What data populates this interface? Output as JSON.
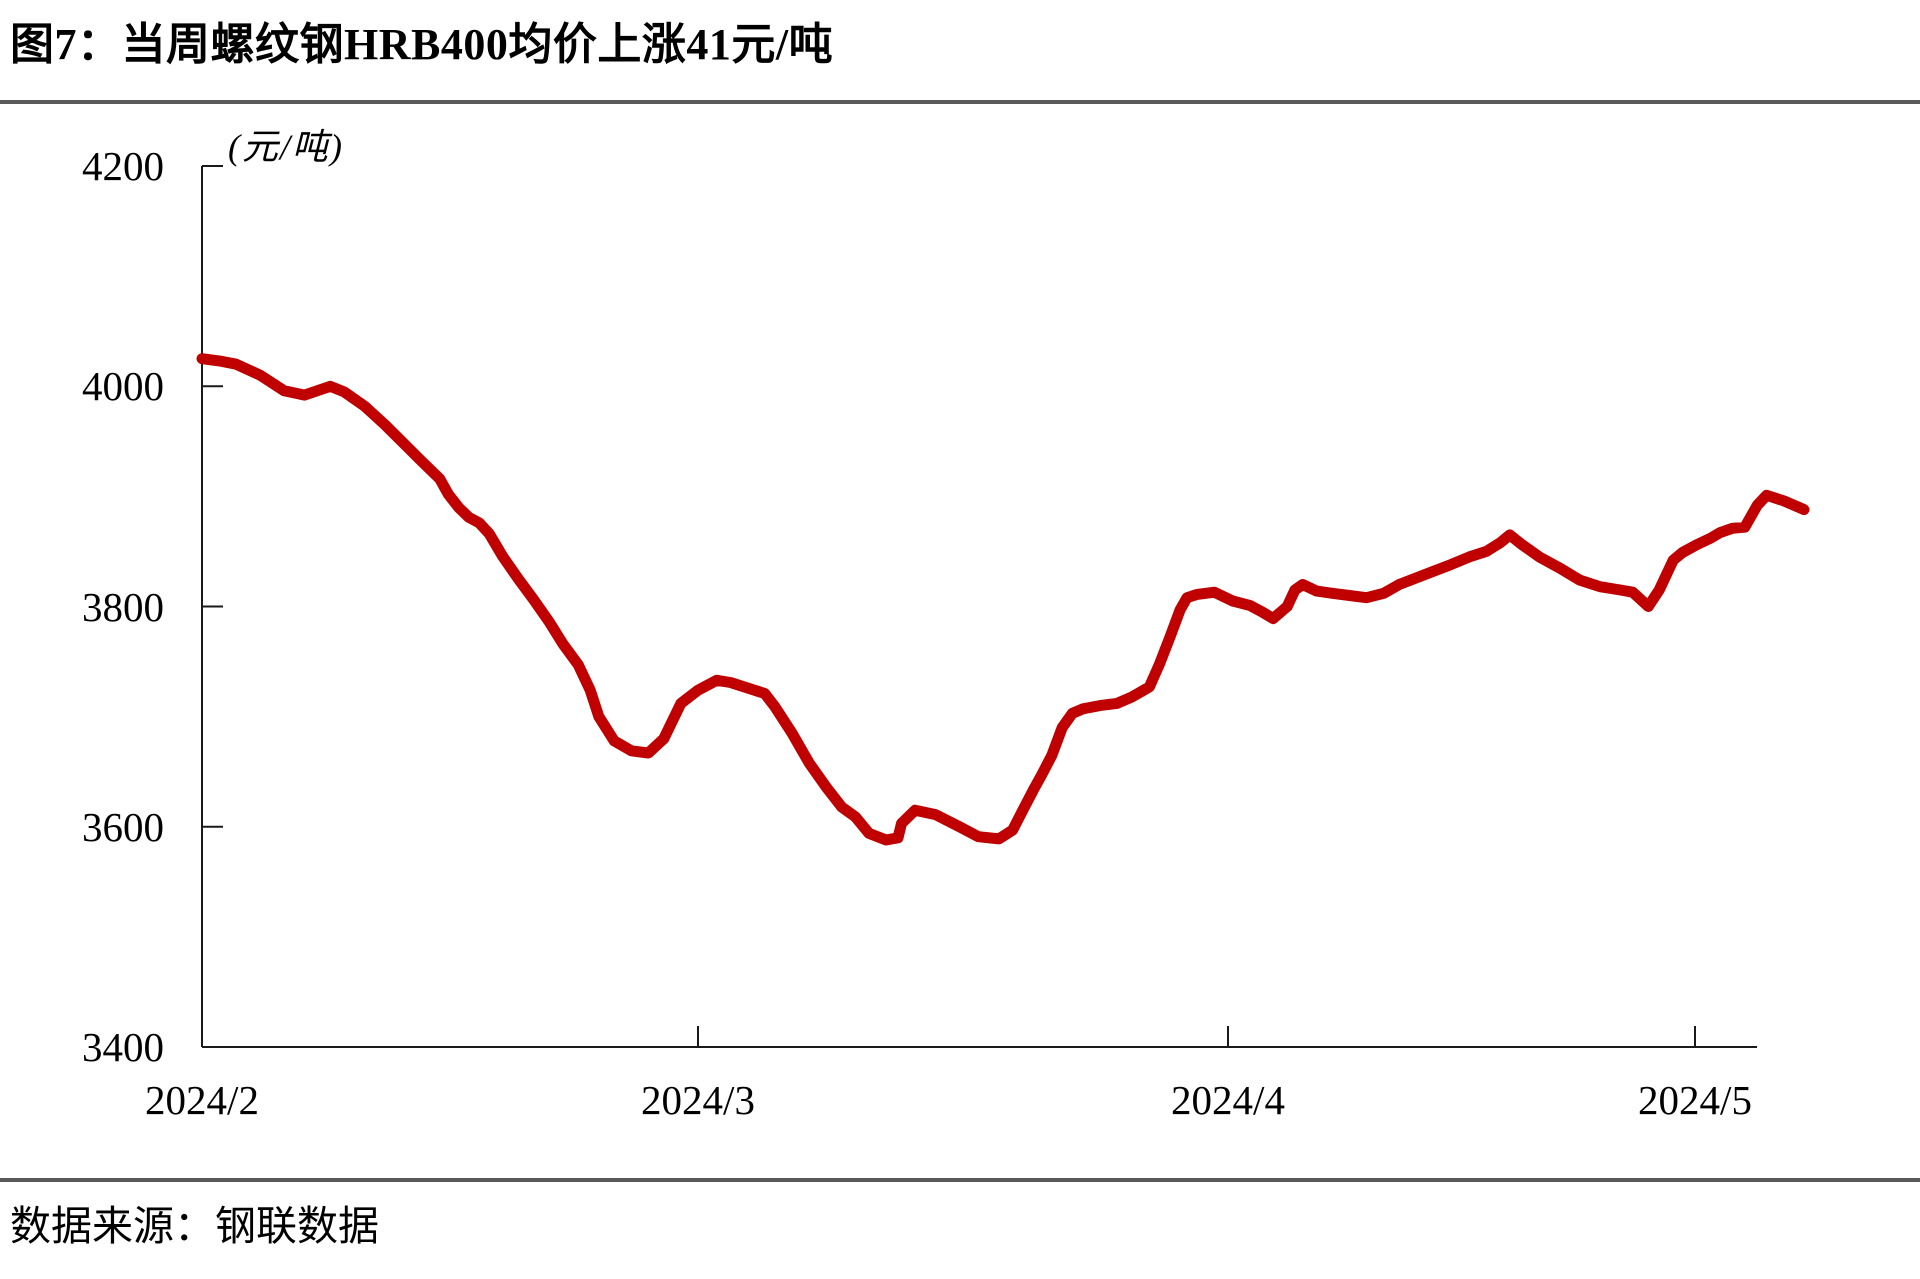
{
  "figure": {
    "title": "图7：当周螺纹钢HRB400均价上涨41元/吨",
    "source": "数据来源：钢联数据",
    "divider_color": "#595959",
    "background_color": "#ffffff",
    "axis_color": "#1a1a1a"
  },
  "chart_data": {
    "type": "line",
    "title": "当周螺纹钢HRB400均价上涨41元/吨",
    "unit_label": "(元/吨)",
    "xlabel": "",
    "ylabel": "元/吨",
    "ylim": [
      3400,
      4200
    ],
    "y_ticks": [
      "4200",
      "4000",
      "3800",
      "3600",
      "3400"
    ],
    "y_tick_values": [
      4200,
      4000,
      3800,
      3600,
      3400
    ],
    "x_ticks": [
      "2024/2",
      "2024/3",
      "2024/4",
      "2024/5"
    ],
    "month_tick_days": [
      0,
      29,
      60,
      90
    ],
    "grid": false,
    "legend_position": "none",
    "line_color": "#C00000",
    "line_width": 11,
    "x_axis_note": "x values are calendar days offset from 2024-02-01 (0=2/1, 29=3/1, 60=4/1, 90=5/1)",
    "series": [
      {
        "name": "螺纹钢HRB400均价",
        "points": [
          [
            0,
            4025
          ],
          [
            1,
            4023
          ],
          [
            2,
            4020
          ],
          [
            3.4,
            4010
          ],
          [
            4.8,
            3996
          ],
          [
            6,
            3992
          ],
          [
            7.5,
            4000
          ],
          [
            8.3,
            3995
          ],
          [
            9.5,
            3982
          ],
          [
            10.7,
            3965
          ],
          [
            11.8,
            3948
          ],
          [
            12.7,
            3934
          ],
          [
            13.9,
            3916
          ],
          [
            14.4,
            3902
          ],
          [
            15,
            3890
          ],
          [
            15.6,
            3881
          ],
          [
            16.2,
            3876
          ],
          [
            16.8,
            3866
          ],
          [
            17.6,
            3845
          ],
          [
            18.5,
            3825
          ],
          [
            19.4,
            3806
          ],
          [
            20.3,
            3786
          ],
          [
            21.1,
            3766
          ],
          [
            22,
            3747
          ],
          [
            22.7,
            3724
          ],
          [
            23.2,
            3700
          ],
          [
            24.1,
            3678
          ],
          [
            25.1,
            3669
          ],
          [
            26.1,
            3667
          ],
          [
            27,
            3680
          ],
          [
            28,
            3712
          ],
          [
            29,
            3724
          ],
          [
            30.1,
            3733
          ],
          [
            30.9,
            3731
          ],
          [
            31.9,
            3726
          ],
          [
            32.9,
            3721
          ],
          [
            33.5,
            3709
          ],
          [
            34.5,
            3685
          ],
          [
            35.5,
            3658
          ],
          [
            36.5,
            3636
          ],
          [
            37.4,
            3618
          ],
          [
            38.2,
            3609
          ],
          [
            39,
            3594
          ],
          [
            40,
            3588
          ],
          [
            40.7,
            3590
          ],
          [
            40.9,
            3603
          ],
          [
            41.7,
            3615
          ],
          [
            42.9,
            3611
          ],
          [
            44.3,
            3600
          ],
          [
            45.4,
            3591
          ],
          [
            46.6,
            3589
          ],
          [
            47.4,
            3597
          ],
          [
            48,
            3615
          ],
          [
            48.6,
            3633
          ],
          [
            49.1,
            3647
          ],
          [
            49.7,
            3665
          ],
          [
            50.3,
            3690
          ],
          [
            50.9,
            3703
          ],
          [
            51.5,
            3707
          ],
          [
            52.5,
            3710
          ],
          [
            53.5,
            3712
          ],
          [
            54.4,
            3718
          ],
          [
            55.4,
            3727
          ],
          [
            56,
            3748
          ],
          [
            56.6,
            3772
          ],
          [
            57.2,
            3797
          ],
          [
            57.6,
            3808
          ],
          [
            58.2,
            3811
          ],
          [
            59.2,
            3813
          ],
          [
            60.3,
            3805
          ],
          [
            61.4,
            3801
          ],
          [
            62.2,
            3795
          ],
          [
            62.9,
            3789
          ],
          [
            63.8,
            3800
          ],
          [
            64.3,
            3815
          ],
          [
            64.8,
            3820
          ],
          [
            65.7,
            3814
          ],
          [
            66.7,
            3812
          ],
          [
            67.8,
            3810
          ],
          [
            68.9,
            3808
          ],
          [
            70,
            3812
          ],
          [
            71,
            3820
          ],
          [
            72.1,
            3826
          ],
          [
            73.2,
            3832
          ],
          [
            74.3,
            3838
          ],
          [
            75.5,
            3845
          ],
          [
            76.6,
            3850
          ],
          [
            77.5,
            3858
          ],
          [
            78.1,
            3865
          ],
          [
            78.9,
            3856
          ],
          [
            80,
            3845
          ],
          [
            81.3,
            3835
          ],
          [
            82.6,
            3824
          ],
          [
            83.9,
            3818
          ],
          [
            85.2,
            3815
          ],
          [
            86,
            3813
          ],
          [
            87,
            3800
          ],
          [
            87.7,
            3815
          ],
          [
            88.6,
            3842
          ],
          [
            89.2,
            3849
          ],
          [
            90.1,
            3856
          ],
          [
            91,
            3862
          ],
          [
            91.6,
            3867
          ],
          [
            92.4,
            3871
          ],
          [
            93.2,
            3872
          ],
          [
            94,
            3892
          ],
          [
            94.6,
            3901
          ],
          [
            95.7,
            3896
          ],
          [
            97,
            3888
          ]
        ]
      }
    ]
  }
}
